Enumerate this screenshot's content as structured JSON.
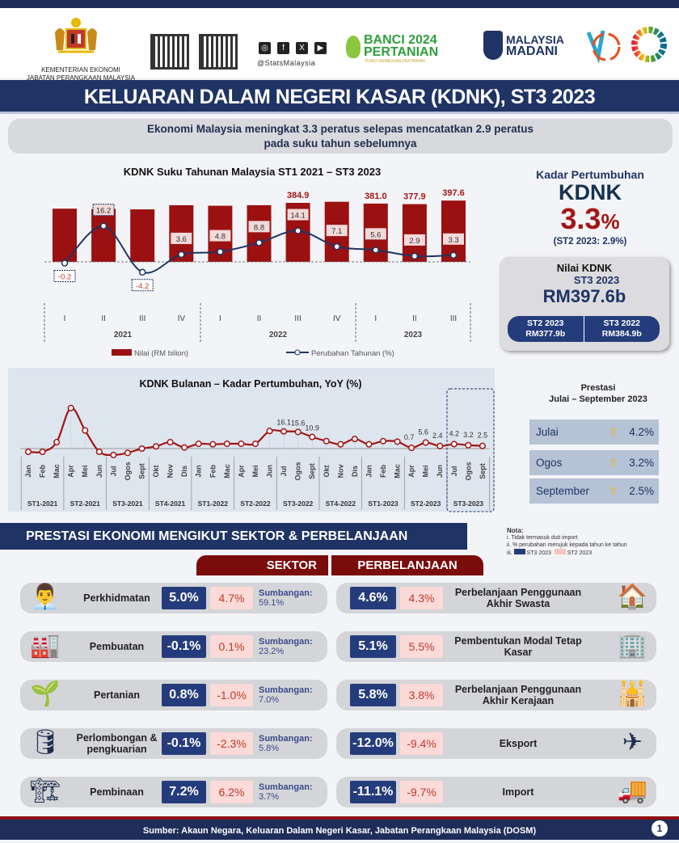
{
  "header": {
    "ministry_line1": "KEMENTERIAN EKONOMI",
    "ministry_line2": "JABATAN PERANGKAAN MALAYSIA",
    "social_handle": "@StatsMalaysia",
    "social_icons": [
      "instagram-icon",
      "facebook-icon",
      "x-icon",
      "youtube-icon"
    ],
    "banci_line1": "BANCI 2024",
    "banci_line2": "PERTANIAN",
    "banci_tagline": "KUNCI KEMAJUAN PERTANIAN",
    "madani_line1": "MALAYSIA",
    "madani_line2": "MADANI"
  },
  "title": "KELUARAN DALAM NEGERI KASAR (KDNK), ST3 2023",
  "subtitle_line1": "Ekonomi Malaysia meningkat 3.3 peratus selepas mencatatkan 2.9 peratus",
  "subtitle_line2": "pada suku tahun sebelumnya",
  "chart_data": [
    {
      "type": "bar+line",
      "title": "KDNK Suku Tahunan Malaysia ST1 2021 – ST3 2023",
      "categories": [
        "I",
        "II",
        "III",
        "IV",
        "I",
        "II",
        "III",
        "IV",
        "I",
        "II",
        "III"
      ],
      "years": [
        "2021",
        "2022",
        "2023"
      ],
      "series": [
        {
          "name": "Nilai (RM bilion)",
          "type": "bar",
          "color": "#9b1111",
          "values": [
            353,
            351,
            349,
            372,
            369,
            372,
            384.9,
            391,
            381.0,
            377.9,
            397.6
          ],
          "labels": [
            "",
            "",
            "",
            "",
            "",
            "",
            "384.9",
            "",
            "381.0",
            "377.9",
            "397.6"
          ]
        },
        {
          "name": "Perubahan Tahunan (%)",
          "type": "line",
          "color": "#1f3464",
          "values": [
            -0.2,
            16.2,
            -4.2,
            3.6,
            4.8,
            8.8,
            14.1,
            7.1,
            5.6,
            2.9,
            3.3
          ]
        }
      ]
    },
    {
      "type": "line",
      "title": "KDNK Bulanan – Kadar Pertumbuhan, YoY (%)",
      "color": "#a31515",
      "months": [
        "Jan",
        "Feb",
        "Mac",
        "Apr",
        "Mei",
        "Jun",
        "Jul",
        "Ogos",
        "Sept",
        "Okt",
        "Nov",
        "Dis",
        "Jan",
        "Feb",
        "Mac",
        "Apr",
        "Mei",
        "Jun",
        "Jul",
        "Ogos",
        "Sept",
        "Okt",
        "Nov",
        "Dis",
        "Jan",
        "Feb",
        "Mac",
        "Apr",
        "Mei",
        "Jun",
        "Jul",
        "Ogos",
        "Sept"
      ],
      "quarters": [
        "ST1-2021",
        "ST2-2021",
        "ST3-2021",
        "ST4-2021",
        "ST1-2022",
        "ST2-2022",
        "ST3-2022",
        "ST4-2022",
        "ST1-2023",
        "ST2-2023",
        "ST3-2023"
      ],
      "values": [
        -3,
        -3,
        6,
        38,
        17,
        -3,
        -6,
        -4,
        0,
        2,
        6,
        1,
        4.5,
        4,
        4.5,
        4.5,
        4.5,
        16.5,
        16.1,
        15.6,
        10.9,
        7,
        4,
        9,
        4,
        7,
        6.5,
        0.7,
        5.6,
        2.4,
        4.2,
        3.2,
        2.5
      ],
      "labels": {
        "18": "16.1",
        "19": "15.6",
        "20": "10.9",
        "27": "0.7",
        "28": "5.6",
        "29": "2.4",
        "30": "4.2",
        "31": "3.2",
        "32": "2.5"
      },
      "highlight": "ST3-2023"
    }
  ],
  "kadar": {
    "label": "Kadar Pertumbuhan",
    "kdnk": "KDNK",
    "value": "3.3",
    "pct": "%",
    "prev": "(ST2 2023: 2.9%)"
  },
  "nilai": {
    "label": "Nilai KDNK",
    "period": "ST3 2023",
    "value": "RM397.6b",
    "left_period": "ST2 2023",
    "left_value": "RM377.9b",
    "right_period": "ST3 2022",
    "right_value": "RM384.9b"
  },
  "prestasi": {
    "title_line1": "Prestasi",
    "title_line2": "Julai – September 2023",
    "rows": [
      {
        "month": "Julai",
        "value": "4.2%"
      },
      {
        "month": "Ogos",
        "value": "3.2%"
      },
      {
        "month": "September",
        "value": "2.5%"
      }
    ]
  },
  "section_title": "PRESTASI EKONOMI MENGIKUT SEKTOR & PERBELANJAAN",
  "nota": {
    "title": "Nota:",
    "items": [
      "i.   Tidak termasuk duti import",
      "ii.  % perubahan merujuk kepada tahun ke tahun",
      "iii."
    ],
    "st3": "ST3 2023",
    "st2": "ST2 2023",
    "st3_color": "#253c7c",
    "st2_color": "#fbc4c4"
  },
  "tabs": {
    "sektor": "SEKTOR",
    "perbelanjaan": "PERBELANJAAN"
  },
  "sectors": [
    {
      "name": "Perkhidmatan",
      "st3": "5.0%",
      "st2": "4.7%",
      "sumb_label": "Sumbangan:",
      "sumb": "59.1%",
      "icon": "👨‍💼"
    },
    {
      "name": "Pembuatan",
      "st3": "-0.1%",
      "st2": "0.1%",
      "sumb_label": "Sumbangan:",
      "sumb": "23.2%",
      "icon": "🏭"
    },
    {
      "name": "Pertanian",
      "st3": "0.8%",
      "st2": "-1.0%",
      "sumb_label": "Sumbangan:",
      "sumb": "7.0%",
      "icon": "🌱"
    },
    {
      "name": "Perlombongan & pengkuarian",
      "st3": "-0.1%",
      "st2": "-2.3%",
      "sumb_label": "Sumbangan:",
      "sumb": "5.8%",
      "icon": "🛢"
    },
    {
      "name": "Pembinaan",
      "st3": "7.2%",
      "st2": "6.2%",
      "sumb_label": "Sumbangan:",
      "sumb": "3.7%",
      "icon": "🏗"
    }
  ],
  "expenditure": [
    {
      "name": "Perbelanjaan Penggunaan Akhir Swasta",
      "st3": "4.6%",
      "st2": "4.3%",
      "icon": "🏠"
    },
    {
      "name": "Pembentukan Modal Tetap Kasar",
      "st3": "5.1%",
      "st2": "5.5%",
      "icon": "🏢"
    },
    {
      "name": "Perbelanjaan Penggunaan Akhir Kerajaan",
      "st3": "5.8%",
      "st2": "3.8%",
      "icon": "🕌"
    },
    {
      "name": "Eksport",
      "st3": "-12.0%",
      "st2": "-9.4%",
      "icon": "✈"
    },
    {
      "name": "Import",
      "st3": "-11.1%",
      "st2": "-9.7%",
      "icon": "🚚"
    }
  ],
  "footer": "Sumber: Akaun Negara, Keluaran Dalam Negeri Kasar, Jabatan Perangkaan Malaysia (DOSM)",
  "page": "1"
}
